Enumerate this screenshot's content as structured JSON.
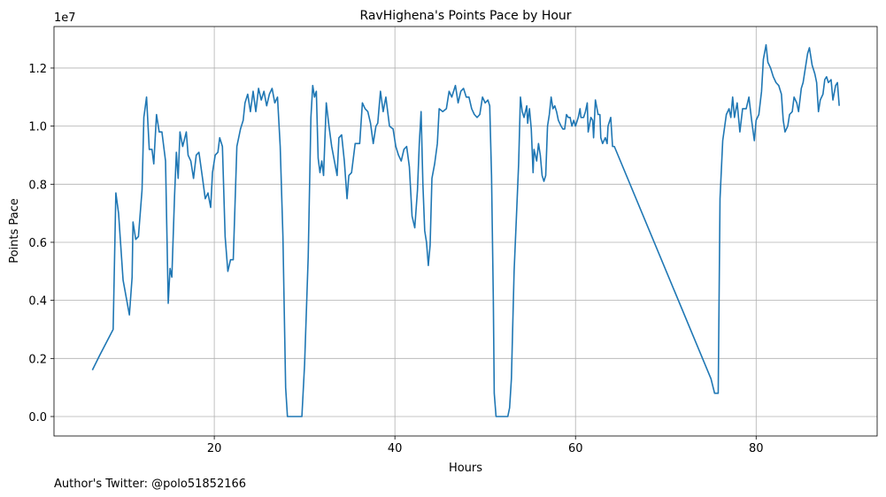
{
  "chart_data": {
    "type": "line",
    "title": "RavHighena's Points Pace by Hour",
    "xlabel": "Hours",
    "ylabel": "Points Pace",
    "y_offset_label": "1e7",
    "footer": "Author's Twitter: @polo51852166",
    "color": "#1f77b4",
    "grid": true,
    "xlim": [
      2.25,
      93.4
    ],
    "ylim": [
      -0.067,
      1.343
    ],
    "xticks": [
      20,
      40,
      60,
      80
    ],
    "yticks": [
      {
        "value": 0,
        "label": "0.0"
      },
      0.2,
      0.4,
      0.6,
      0.8,
      {
        "value": 1,
        "label": "1.0"
      },
      1.2
    ],
    "x": [
      6.5,
      7.3,
      8.8,
      9.1,
      9.4,
      9.9,
      10.6,
      10.9,
      11.0,
      11.3,
      11.6,
      12.0,
      12.0,
      12.2,
      12.5,
      12.8,
      13.1,
      13.3,
      13.6,
      13.9,
      14.2,
      14.6,
      14.9,
      15.1,
      15.3,
      15.6,
      15.8,
      16.0,
      16.2,
      16.5,
      16.9,
      17.1,
      17.4,
      17.7,
      18.0,
      18.3,
      18.7,
      19.0,
      19.3,
      19.6,
      19.8,
      20.1,
      20.4,
      20.6,
      20.9,
      21.2,
      21.5,
      21.8,
      22.1,
      22.5,
      22.9,
      23.2,
      23.4,
      23.7,
      24.0,
      24.3,
      24.6,
      24.9,
      25.2,
      25.5,
      25.8,
      26.1,
      26.4,
      26.7,
      27.0,
      27.3,
      27.6,
      27.9,
      28.1,
      29.7,
      30.0,
      30.4,
      30.7,
      30.9,
      31.1,
      31.3,
      31.5,
      31.7,
      31.9,
      32.1,
      32.4,
      32.7,
      33.0,
      33.3,
      33.6,
      33.8,
      34.1,
      34.4,
      34.7,
      34.9,
      35.2,
      35.6,
      36.1,
      36.4,
      36.7,
      37.0,
      37.3,
      37.6,
      37.9,
      38.1,
      38.4,
      38.7,
      39.0,
      39.4,
      39.8,
      40.1,
      40.4,
      40.7,
      41.0,
      41.3,
      41.6,
      41.9,
      42.2,
      42.5,
      42.7,
      42.9,
      43.1,
      43.3,
      43.5,
      43.7,
      43.9,
      44.1,
      44.4,
      44.7,
      44.9,
      45.3,
      45.7,
      46.0,
      46.3,
      46.7,
      47.0,
      47.3,
      47.6,
      47.9,
      48.2,
      48.5,
      48.8,
      49.1,
      49.4,
      49.7,
      50.0,
      50.3,
      50.5,
      50.7,
      50.9,
      51.0,
      51.2,
      52.5,
      52.7,
      52.9,
      53.2,
      53.5,
      53.7,
      53.9,
      54.1,
      54.3,
      54.6,
      54.7,
      54.9,
      55.1,
      55.3,
      55.4,
      55.7,
      55.9,
      56.1,
      56.3,
      56.5,
      56.7,
      56.9,
      57.1,
      57.3,
      57.5,
      57.7,
      57.9,
      58.1,
      58.4,
      58.6,
      58.8,
      59.0,
      59.2,
      59.4,
      59.6,
      59.8,
      60.0,
      60.3,
      60.5,
      60.6,
      60.9,
      61.1,
      61.3,
      61.4,
      61.7,
      61.9,
      62.0,
      62.2,
      62.5,
      62.7,
      62.8,
      63.0,
      63.3,
      63.5,
      63.6,
      63.9,
      64.1,
      64.3,
      75.0,
      75.4,
      75.8,
      76.0,
      76.3,
      76.7,
      77.0,
      77.2,
      77.4,
      77.6,
      77.9,
      78.2,
      78.5,
      78.9,
      79.2,
      79.5,
      79.8,
      80.0,
      80.3,
      80.6,
      80.8,
      81.1,
      81.3,
      81.6,
      81.9,
      82.2,
      82.5,
      82.8,
      83.0,
      83.2,
      83.5,
      83.7,
      84.0,
      84.2,
      84.5,
      84.7,
      85.0,
      85.2,
      85.5,
      85.7,
      85.9,
      86.2,
      86.5,
      86.7,
      86.9,
      87.1,
      87.4,
      87.6,
      87.8,
      88.0,
      88.3,
      88.5,
      88.8,
      89.0,
      89.2
    ],
    "values": [
      0.16,
      0.21,
      0.3,
      0.77,
      0.7,
      0.47,
      0.35,
      0.48,
      0.67,
      0.61,
      0.62,
      0.78,
      0.78,
      1.03,
      1.1,
      0.92,
      0.92,
      0.87,
      1.04,
      0.98,
      0.98,
      0.88,
      0.39,
      0.51,
      0.48,
      0.76,
      0.91,
      0.82,
      0.98,
      0.93,
      0.98,
      0.9,
      0.88,
      0.82,
      0.9,
      0.91,
      0.82,
      0.75,
      0.77,
      0.72,
      0.84,
      0.9,
      0.91,
      0.96,
      0.93,
      0.62,
      0.5,
      0.54,
      0.54,
      0.93,
      0.99,
      1.02,
      1.08,
      1.11,
      1.05,
      1.12,
      1.05,
      1.13,
      1.09,
      1.12,
      1.07,
      1.11,
      1.13,
      1.08,
      1.1,
      0.93,
      0.62,
      0.1,
      0.0,
      0.0,
      0.18,
      0.55,
      1.03,
      1.14,
      1.1,
      1.12,
      0.89,
      0.84,
      0.88,
      0.83,
      1.08,
      1.0,
      0.93,
      0.88,
      0.83,
      0.96,
      0.97,
      0.88,
      0.75,
      0.83,
      0.84,
      0.94,
      0.94,
      1.08,
      1.06,
      1.05,
      1.01,
      0.94,
      1.0,
      1.01,
      1.12,
      1.05,
      1.1,
      1.0,
      0.99,
      0.93,
      0.9,
      0.88,
      0.92,
      0.93,
      0.86,
      0.69,
      0.65,
      0.78,
      0.94,
      1.05,
      0.8,
      0.64,
      0.6,
      0.52,
      0.59,
      0.82,
      0.87,
      0.94,
      1.06,
      1.05,
      1.06,
      1.12,
      1.1,
      1.14,
      1.08,
      1.12,
      1.13,
      1.1,
      1.1,
      1.06,
      1.04,
      1.03,
      1.04,
      1.1,
      1.08,
      1.09,
      1.07,
      0.83,
      0.4,
      0.08,
      0.0,
      0.0,
      0.03,
      0.13,
      0.5,
      0.72,
      0.87,
      1.1,
      1.05,
      1.03,
      1.07,
      1.01,
      1.06,
      0.99,
      0.84,
      0.92,
      0.88,
      0.94,
      0.9,
      0.83,
      0.81,
      0.83,
      1.0,
      1.04,
      1.1,
      1.06,
      1.07,
      1.05,
      1.02,
      1.0,
      0.99,
      0.99,
      1.04,
      1.03,
      1.03,
      1.0,
      1.02,
      1.0,
      1.03,
      1.06,
      1.03,
      1.03,
      1.05,
      1.08,
      0.98,
      1.03,
      1.02,
      0.96,
      1.09,
      1.04,
      1.04,
      0.96,
      0.94,
      0.96,
      0.94,
      1.0,
      1.03,
      0.93,
      0.93,
      0.13,
      0.08,
      0.08,
      0.75,
      0.95,
      1.04,
      1.06,
      1.03,
      1.1,
      1.03,
      1.08,
      0.98,
      1.06,
      1.06,
      1.1,
      1.02,
      0.95,
      1.02,
      1.04,
      1.12,
      1.23,
      1.28,
      1.22,
      1.2,
      1.17,
      1.15,
      1.14,
      1.11,
      1.02,
      0.98,
      1.0,
      1.04,
      1.05,
      1.1,
      1.08,
      1.05,
      1.13,
      1.15,
      1.21,
      1.25,
      1.27,
      1.21,
      1.18,
      1.15,
      1.05,
      1.09,
      1.11,
      1.16,
      1.17,
      1.15,
      1.16,
      1.09,
      1.14,
      1.15,
      1.07
    ]
  }
}
